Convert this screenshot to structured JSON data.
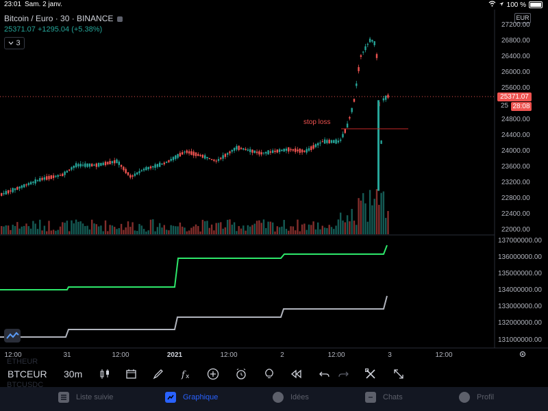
{
  "status_bar": {
    "time": "23:01",
    "date": "Sam. 2 janv.",
    "battery": "100 %"
  },
  "chart": {
    "symbol_title": "Bitcoin / Euro · 30 · BINANCE",
    "last_price": "25371.07",
    "change": "+1295.04 (+5.38%)",
    "indicator_count": "3",
    "currency": "EUR",
    "price_tag": "25371.07",
    "countdown_tag": "28:08",
    "price_partially_hidden": "25",
    "annotation": "stop loss",
    "y_axis_labels": [
      "27200.00",
      "26800.00",
      "26400.00",
      "26000.00",
      "25600.00",
      "24800.00",
      "24400.00",
      "24000.00",
      "23600.00",
      "23200.00",
      "22800.00",
      "22400.00",
      "22000.00"
    ],
    "indicator_axis_labels": [
      "137000000.00",
      "136000000.00",
      "135000000.00",
      "134000000.00",
      "133000000.00",
      "132000000.00",
      "131000000.00"
    ],
    "x_axis_labels": [
      "12:00",
      "31",
      "12:00",
      "2021",
      "12:00",
      "2",
      "12:00",
      "3",
      "12:00"
    ],
    "colors": {
      "up": "#26a69a",
      "down": "#ef5350",
      "green_line": "#2ee86b",
      "gray_line": "#b2b5be"
    }
  },
  "toolbar": {
    "ghost_above": "ETHEUR",
    "symbol": "BTCEUR",
    "ghost_below": "BTCUSDC",
    "interval": "30m",
    "icons": [
      "candles-icon",
      "compare-icon",
      "draw-icon",
      "fx-icon",
      "plus-icon",
      "alarm-icon",
      "idea-icon",
      "replay-icon",
      "undo-icon",
      "redo-icon",
      "tools-icon",
      "fullscreen-icon"
    ]
  },
  "tabs": [
    {
      "label": "Liste suivie",
      "icon": "list-icon",
      "active": false
    },
    {
      "label": "Graphique",
      "icon": "chart-icon",
      "active": true
    },
    {
      "label": "Idées",
      "icon": "bulb-icon",
      "active": false
    },
    {
      "label": "Chats",
      "icon": "chat-icon",
      "active": false
    },
    {
      "label": "Profil",
      "icon": "profile-icon",
      "active": false
    }
  ]
}
